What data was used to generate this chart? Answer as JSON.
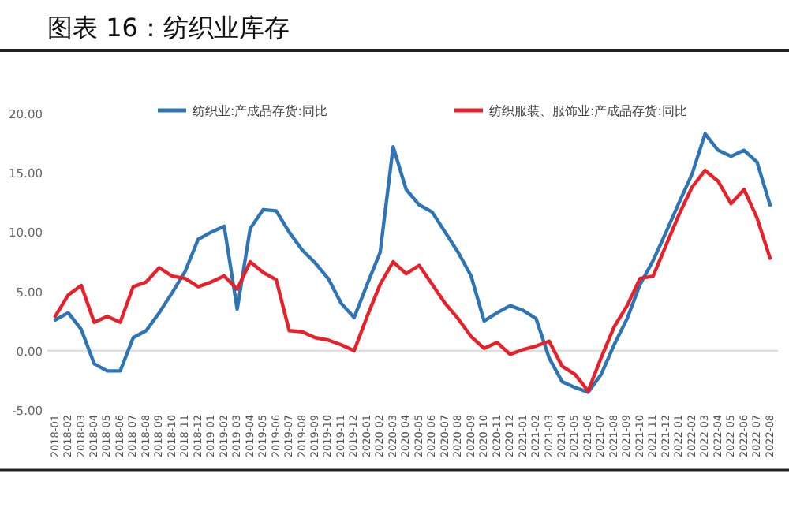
{
  "chart_data": {
    "type": "line",
    "title": "图表 16：纺织业库存",
    "categories": [
      "2018-01",
      "2018-02",
      "2018-03",
      "2018-04",
      "2018-05",
      "2018-06",
      "2018-07",
      "2018-08",
      "2018-09",
      "2018-10",
      "2018-11",
      "2018-12",
      "2019-01",
      "2019-02",
      "2019-03",
      "2019-04",
      "2019-05",
      "2019-06",
      "2019-07",
      "2019-08",
      "2019-09",
      "2019-10",
      "2019-11",
      "2019-12",
      "2020-01",
      "2020-02",
      "2020-03",
      "2020-04",
      "2020-05",
      "2020-06",
      "2020-07",
      "2020-08",
      "2020-09",
      "2020-10",
      "2020-11",
      "2020-12",
      "2021-01",
      "2021-02",
      "2021-03",
      "2021-04",
      "2021-05",
      "2021-06",
      "2021-07",
      "2021-08",
      "2021-09",
      "2021-10",
      "2021-11",
      "2021-12",
      "2022-01",
      "2022-02",
      "2022-03",
      "2022-04",
      "2022-05",
      "2022-06",
      "2022-07",
      "2022-08"
    ],
    "series": [
      {
        "name": "纺织业:产成品存货:同比",
        "color": "#2e75b6",
        "values": [
          2.6,
          3.2,
          1.8,
          -1.1,
          -1.7,
          -1.7,
          1.1,
          1.7,
          3.2,
          4.9,
          6.7,
          9.4,
          10.0,
          10.5,
          3.5,
          10.3,
          11.9,
          11.8,
          10.0,
          8.5,
          7.4,
          6.1,
          4.0,
          2.8,
          5.6,
          8.3,
          17.2,
          13.6,
          12.3,
          11.7,
          10.0,
          8.3,
          6.3,
          2.5,
          3.2,
          3.8,
          3.4,
          2.7,
          -0.6,
          -2.6,
          -3.1,
          -3.5,
          -2.0,
          0.5,
          2.7,
          5.6,
          7.6,
          10.0,
          12.5,
          14.9,
          18.3,
          16.9,
          16.4,
          16.9,
          15.9,
          12.3
        ]
      },
      {
        "name": "纺织服装、服饰业:产成品存货:同比",
        "color": "#e8202a",
        "values": [
          2.9,
          4.7,
          5.5,
          2.4,
          2.9,
          2.4,
          5.4,
          5.8,
          7.0,
          6.3,
          6.1,
          5.4,
          5.8,
          6.3,
          5.2,
          7.5,
          6.6,
          6.0,
          1.7,
          1.6,
          1.1,
          0.9,
          0.5,
          0.0,
          2.9,
          5.6,
          7.5,
          6.5,
          7.2,
          5.6,
          4.0,
          2.7,
          1.2,
          0.2,
          0.7,
          -0.3,
          0.1,
          0.4,
          0.8,
          -1.3,
          -2.0,
          -3.4,
          -0.6,
          2.0,
          3.8,
          6.1,
          6.3,
          8.9,
          11.5,
          13.8,
          15.2,
          14.3,
          12.4,
          13.6,
          11.2,
          7.8
        ]
      }
    ],
    "ylim": [
      -5,
      20
    ],
    "yticks": [
      {
        "value": -5,
        "label": "-5.00"
      },
      {
        "value": 0,
        "label": "0.00"
      },
      {
        "value": 5,
        "label": "5.00"
      },
      {
        "value": 10,
        "label": "10.00"
      },
      {
        "value": 15,
        "label": "15.00"
      },
      {
        "value": 20,
        "label": "20.00"
      }
    ],
    "ref_lines": [
      {
        "axis": "y",
        "value": 0,
        "color": "#d9d9d9"
      }
    ],
    "legend": "top",
    "grid": false,
    "marker": "none",
    "line_style": "solid"
  }
}
